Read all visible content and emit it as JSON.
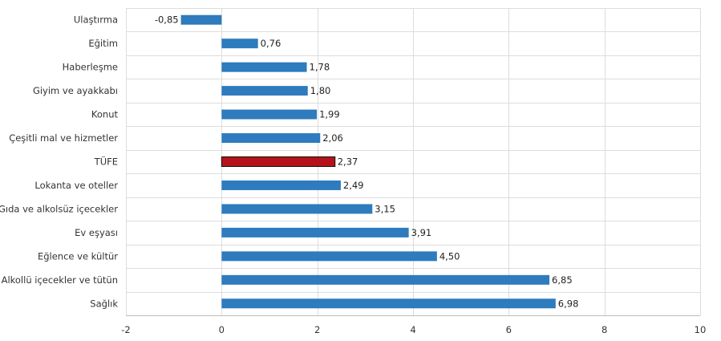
{
  "chart_data": {
    "type": "bar",
    "orientation": "horizontal",
    "categories": [
      "Ulaştırma",
      "Eğitim",
      "Haberleşme",
      "Giyim ve ayakkabı",
      "Konut",
      "Çeşitli mal ve hizmetler",
      "TÜFE",
      "Lokanta ve oteller",
      "Gıda ve alkolsüz içecekler",
      "Ev eşyası",
      "Eğlence ve kültür",
      "Alkollü içecekler ve tütün",
      "Sağlık"
    ],
    "values": [
      -0.85,
      0.76,
      1.78,
      1.8,
      1.99,
      2.06,
      2.37,
      2.49,
      3.15,
      3.91,
      4.5,
      6.85,
      6.98
    ],
    "value_labels": [
      "-0,85",
      "0,76",
      "1,78",
      "1,80",
      "1,99",
      "2,06",
      "2,37",
      "2,49",
      "3,15",
      "3,91",
      "4,50",
      "6,85",
      "6,98"
    ],
    "highlight_index": 6,
    "colors": {
      "bar": "#2e7bbd",
      "highlight": "#b5121b"
    },
    "xlim": [
      -2,
      10
    ],
    "xticks": [
      -2,
      0,
      2,
      4,
      6,
      8,
      10
    ],
    "xtick_labels": [
      "-2",
      "0",
      "2",
      "4",
      "6",
      "8",
      "10"
    ],
    "title": "",
    "xlabel": "",
    "ylabel": "",
    "grid": true,
    "legend": "none"
  }
}
